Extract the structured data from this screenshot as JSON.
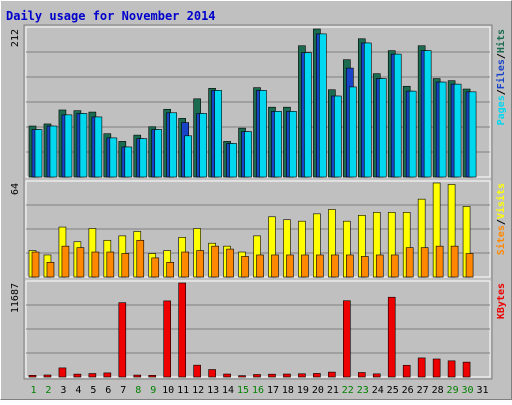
{
  "chart_data": {
    "title": "Daily usage for November 2014",
    "type": "bar",
    "days": [
      "1",
      "2",
      "3",
      "4",
      "5",
      "6",
      "7",
      "8",
      "9",
      "10",
      "11",
      "12",
      "13",
      "14",
      "15",
      "16",
      "17",
      "18",
      "19",
      "20",
      "21",
      "22",
      "23",
      "24",
      "25",
      "26",
      "27",
      "28",
      "29",
      "30",
      "31"
    ],
    "weekend_days": [
      "1",
      "2",
      "8",
      "9",
      "15",
      "16",
      "22",
      "23",
      "29",
      "30"
    ],
    "colors": {
      "background": "#c0c0c0",
      "border": "#ffffff",
      "title": "#0000cc",
      "hits": "#1b6b50",
      "files": "#1a44c8",
      "pages": "#00d8f0",
      "visits": "#ffff00",
      "sites": "#ff8800",
      "kbytes": "#ee0000",
      "weekday_label": "#000000",
      "weekend_label": "#008000"
    },
    "panels": [
      {
        "name": "hits_files_pages",
        "ymax_label": "212",
        "ymax": 212,
        "legend": [
          "Pages",
          "/",
          "Files",
          "/",
          "Hits"
        ],
        "legend_colors": [
          "#00d8f0",
          "#000000",
          "#1a44c8",
          "#000000",
          "#1b6b50"
        ],
        "series": [
          {
            "name": "Hits",
            "values": [
              73,
              76,
              96,
              95,
              93,
              62,
              51,
              60,
              72,
              97,
              84,
              112,
              127,
              51,
              70,
              128,
              100,
              100,
              188,
              212,
              125,
              168,
              198,
              148,
              181,
              130,
              188,
              141,
              138,
              126,
              0
            ]
          },
          {
            "name": "Files",
            "values": [
              68,
              73,
              89,
              91,
              86,
              56,
              43,
              55,
              68,
              92,
              78,
              91,
              124,
              48,
              65,
              124,
              94,
              94,
              178,
              205,
              116,
              156,
              192,
              141,
              176,
              123,
              181,
              136,
              133,
              122,
              0
            ]
          },
          {
            "name": "Pages",
            "values": [
              68,
              73,
              89,
              91,
              86,
              56,
              43,
              55,
              68,
              92,
              59,
              91,
              124,
              48,
              65,
              124,
              94,
              94,
              178,
              205,
              116,
              129,
              192,
              141,
              176,
              123,
              181,
              136,
              133,
              122,
              0
            ]
          }
        ]
      },
      {
        "name": "visits_sites",
        "ymax_label": "64",
        "ymax": 64,
        "legend": [
          "Sites",
          "/",
          "Visits"
        ],
        "legend_colors": [
          "#ff8800",
          "#000000",
          "#ffff00"
        ],
        "series": [
          {
            "name": "Visits",
            "values": [
              18,
              15,
              34,
              24,
              33,
              25,
              28,
              31,
              16,
              18,
              27,
              33,
              23,
              21,
              17,
              28,
              41,
              39,
              38,
              43,
              46,
              38,
              42,
              44,
              44,
              44,
              53,
              64,
              63,
              48,
              0
            ]
          },
          {
            "name": "Sites",
            "values": [
              17,
              10,
              21,
              20,
              17,
              17,
              16,
              25,
              13,
              10,
              17,
              18,
              21,
              19,
              14,
              15,
              15,
              15,
              15,
              15,
              15,
              15,
              14,
              15,
              15,
              20,
              20,
              21,
              21,
              16,
              0
            ]
          }
        ]
      },
      {
        "name": "kbytes",
        "ymax_label": "11687",
        "ymax": 11687,
        "legend": [
          "KBytes"
        ],
        "legend_colors": [
          "#ee0000"
        ],
        "series": [
          {
            "name": "KBytes",
            "values": [
              210,
              250,
              1130,
              360,
              430,
              510,
              9240,
              240,
              210,
              9460,
              11687,
              1470,
              930,
              370,
              170,
              310,
              350,
              370,
              400,
              440,
              610,
              9480,
              560,
              390,
              9920,
              1460,
              2370,
              2240,
              2010,
              1850,
              0
            ]
          }
        ]
      }
    ]
  }
}
